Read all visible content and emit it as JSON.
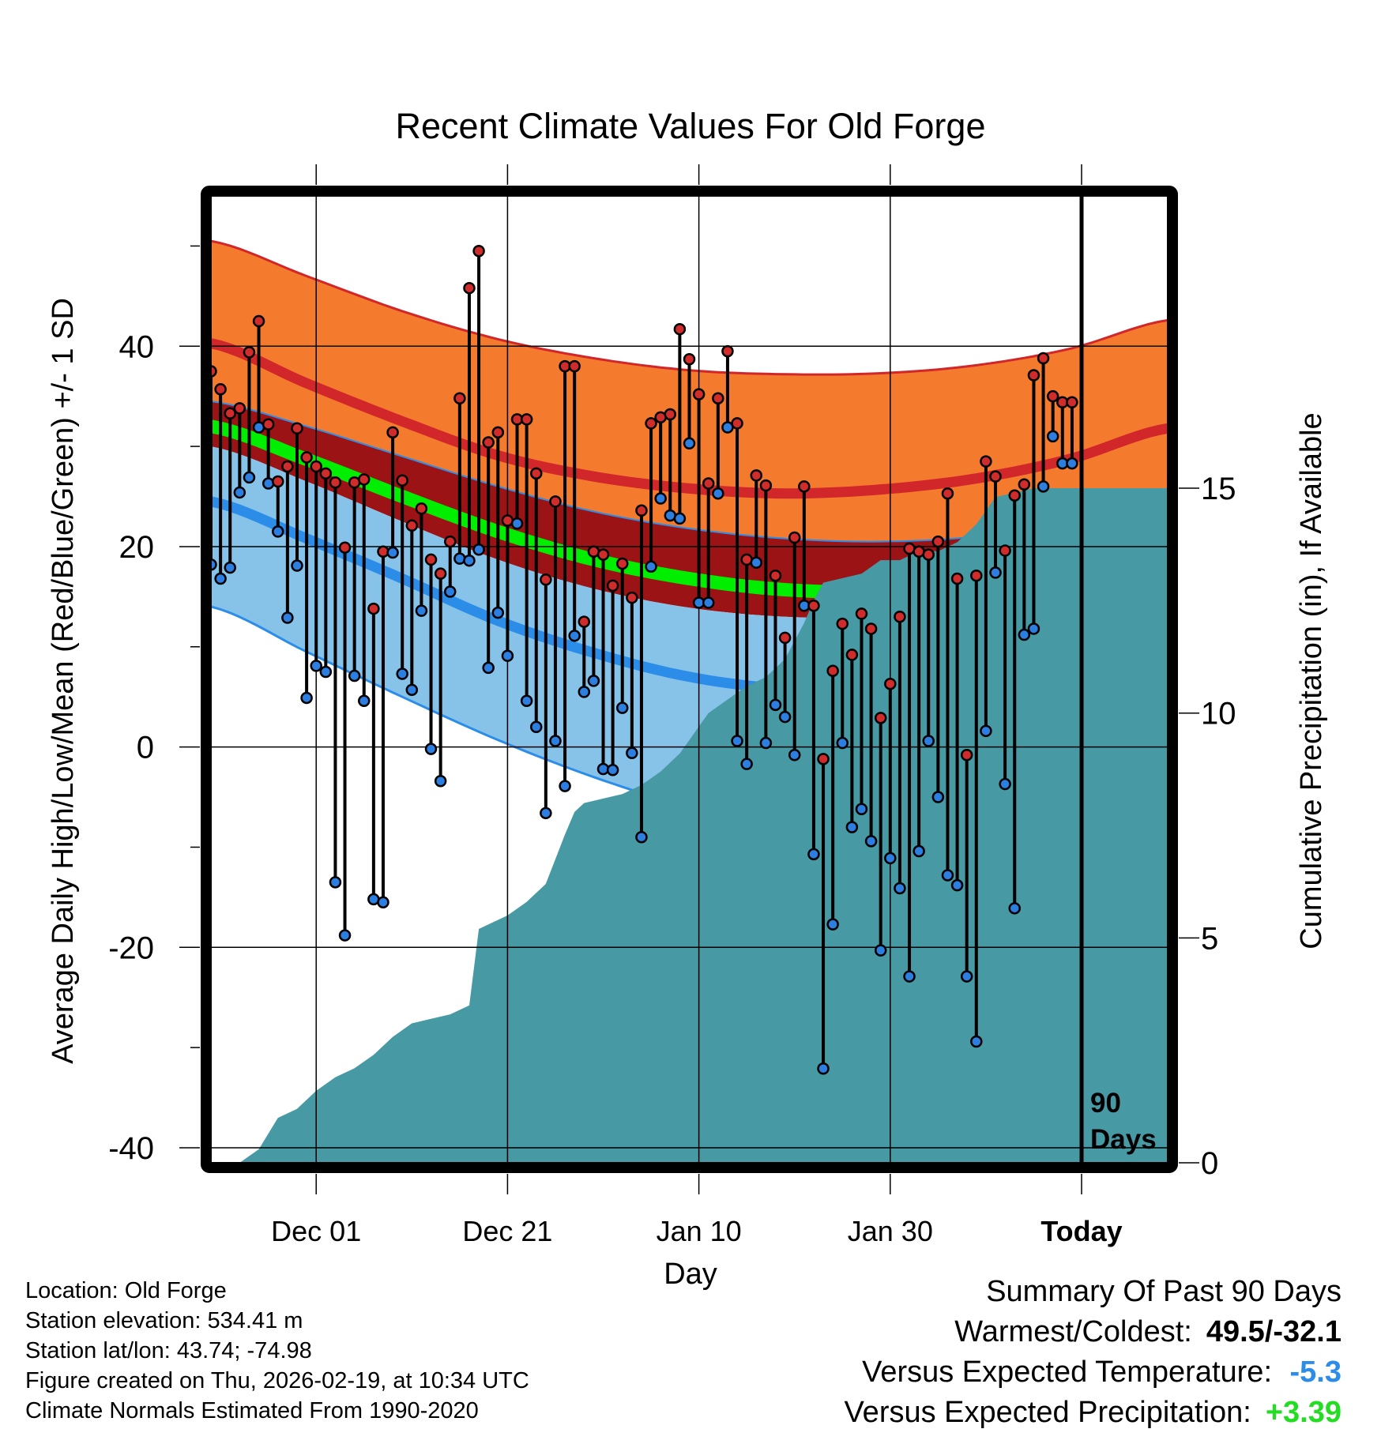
{
  "chart_data": {
    "type": "line",
    "title": "Recent Climate Values For Old Forge",
    "xlabel": "Day",
    "ylabel": "Average Daily High/Low/Mean (Red/Blue/Green) +/- 1 SD",
    "y2label": "Cumulative Precipitation (in), If Available",
    "ylim": [
      -41.5,
      55
    ],
    "y2lim": [
      0,
      21.5
    ],
    "xlim": [
      0,
      100
    ],
    "yticks": [
      -40,
      -20,
      0,
      20,
      40
    ],
    "ytick_labels": [
      "-40",
      "-20",
      "0",
      "20",
      "40"
    ],
    "y2ticks": [
      0,
      5,
      10,
      15
    ],
    "y2tick_labels": [
      "0",
      "5",
      "10",
      "15"
    ],
    "xticks": [
      11,
      31,
      51,
      71,
      91
    ],
    "xtick_labels": [
      "Dec 01",
      "Dec 21",
      "Jan 10",
      "Jan 30",
      "Today"
    ],
    "today_day": 91,
    "today_marker_label": "90 Days",
    "normals": {
      "days": [
        0,
        10,
        20,
        30,
        40,
        50,
        60,
        70,
        80,
        90,
        100
      ],
      "high_plus_sd": [
        50.5,
        47.0,
        43.5,
        40.7,
        38.8,
        37.6,
        37.2,
        37.3,
        38.1,
        39.8,
        42.6
      ],
      "high_mean": [
        40.3,
        36.3,
        32.5,
        29.1,
        27.0,
        25.8,
        25.3,
        25.7,
        26.8,
        28.8,
        31.8
      ],
      "mean_upper": [
        34.5,
        32.0,
        29.0,
        26.0,
        23.5,
        21.8,
        20.8,
        20.5,
        21.0,
        22.5,
        25.0
      ],
      "mean": [
        32.0,
        28.7,
        25.0,
        21.5,
        18.7,
        16.8,
        15.7,
        15.5,
        16.3,
        18.0,
        21.0
      ],
      "high_minus_sd": [
        30.0,
        26.5,
        22.5,
        18.7,
        15.8,
        13.9,
        13.0,
        13.0,
        14.0,
        16.0,
        19.5
      ],
      "low_mean": [
        24.5,
        20.8,
        16.8,
        12.6,
        9.4,
        7.0,
        5.8,
        5.8,
        6.8,
        8.8,
        11.5
      ],
      "low_minus_sd": [
        14.0,
        9.5,
        5.0,
        0.7,
        -3.0,
        -6.0,
        -8.0,
        -8.8,
        -7.5,
        -5.2,
        -2.5
      ]
    },
    "series": [
      {
        "name": "Daily High",
        "x": [
          0,
          1,
          2,
          3,
          4,
          5,
          6,
          7,
          8,
          9,
          10,
          11,
          12,
          13,
          14,
          15,
          16,
          17,
          18,
          19,
          20,
          21,
          22,
          23,
          24,
          25,
          26,
          27,
          28,
          29,
          30,
          31,
          32,
          33,
          34,
          35,
          36,
          37,
          38,
          39,
          40,
          41,
          42,
          43,
          44,
          45,
          46,
          47,
          48,
          49,
          50,
          51,
          52,
          53,
          54,
          55,
          56,
          57,
          58,
          59,
          60,
          61,
          62,
          63,
          64,
          65,
          66,
          67,
          68,
          69,
          70,
          71,
          72,
          73,
          74,
          75,
          76,
          77,
          78,
          79,
          80,
          81,
          82,
          83,
          84,
          85,
          86,
          87,
          88,
          89,
          90
        ],
        "values": [
          37.5,
          35.7,
          33.3,
          33.8,
          39.4,
          42.5,
          32.2,
          26.5,
          28.0,
          31.8,
          28.9,
          28.0,
          27.3,
          26.4,
          19.9,
          26.4,
          26.7,
          13.8,
          19.5,
          31.4,
          26.6,
          22.1,
          23.8,
          18.7,
          17.3,
          20.5,
          34.8,
          45.8,
          49.5,
          30.4,
          31.4,
          22.6,
          32.7,
          32.7,
          27.3,
          16.7,
          24.5,
          38.0,
          38.0,
          12.5,
          19.5,
          19.2,
          16.1,
          18.3,
          14.9,
          23.6,
          32.3,
          32.9,
          33.2,
          41.7,
          38.7,
          35.2,
          26.3,
          34.8,
          39.5,
          32.3,
          18.7,
          27.1,
          26.1,
          17.1,
          10.9,
          20.9,
          26.0,
          14.1,
          -1.2,
          7.6,
          12.3,
          9.2,
          13.3,
          11.8,
          2.9,
          6.3,
          13.0,
          19.8,
          19.5,
          19.2,
          20.5,
          25.3,
          16.8,
          -0.8,
          17.1,
          28.5,
          27.0,
          19.6,
          25.1,
          26.2,
          37.1,
          38.8,
          35.0,
          34.4,
          34.4
        ]
      },
      {
        "name": "Daily Low",
        "x": [
          0,
          1,
          2,
          3,
          4,
          5,
          6,
          7,
          8,
          9,
          10,
          11,
          12,
          13,
          14,
          15,
          16,
          17,
          18,
          19,
          20,
          21,
          22,
          23,
          24,
          25,
          26,
          27,
          28,
          29,
          30,
          31,
          32,
          33,
          34,
          35,
          36,
          37,
          38,
          39,
          40,
          41,
          42,
          43,
          44,
          45,
          46,
          47,
          48,
          49,
          50,
          51,
          52,
          53,
          54,
          55,
          56,
          57,
          58,
          59,
          60,
          61,
          62,
          63,
          64,
          65,
          66,
          67,
          68,
          69,
          70,
          71,
          72,
          73,
          74,
          75,
          76,
          77,
          78,
          79,
          80,
          81,
          82,
          83,
          84,
          85,
          86,
          87,
          88,
          89,
          90
        ],
        "values": [
          18.2,
          16.8,
          17.9,
          25.4,
          26.9,
          31.9,
          26.3,
          21.5,
          12.9,
          18.1,
          4.9,
          8.1,
          7.5,
          -13.5,
          -18.8,
          7.1,
          4.6,
          -15.2,
          -15.5,
          19.4,
          7.3,
          5.7,
          13.6,
          -0.2,
          -3.4,
          15.5,
          18.8,
          18.6,
          19.7,
          7.9,
          13.4,
          9.1,
          22.3,
          4.6,
          2.0,
          -6.6,
          0.6,
          -3.9,
          11.1,
          5.5,
          6.6,
          -2.2,
          -2.3,
          3.9,
          -0.6,
          -9.0,
          18.0,
          24.8,
          23.1,
          22.8,
          30.3,
          14.4,
          14.4,
          25.3,
          31.9,
          0.6,
          -1.7,
          18.4,
          0.4,
          4.2,
          3.0,
          -0.8,
          14.1,
          -10.7,
          -32.1,
          -17.7,
          0.4,
          -8.0,
          -6.2,
          -9.4,
          -20.3,
          -11.1,
          -14.1,
          -22.9,
          -10.4,
          0.6,
          -5.0,
          -12.8,
          -13.8,
          -22.9,
          -29.4,
          1.6,
          17.4,
          -3.7,
          -16.1,
          11.2,
          11.8,
          26.0,
          31.0,
          28.3,
          28.3
        ]
      },
      {
        "name": "Cumulative Precipitation",
        "x": [
          0,
          3,
          5,
          7,
          9,
          11,
          13,
          15,
          17,
          19,
          21,
          23,
          25,
          27,
          28,
          29,
          31,
          33,
          35,
          37,
          38,
          39,
          41,
          43,
          45,
          47,
          49,
          50,
          52,
          54,
          56,
          58,
          60,
          62,
          63,
          64,
          66,
          68,
          70,
          72,
          74,
          76,
          78,
          80,
          82,
          84,
          86,
          90,
          100
        ],
        "values": [
          0,
          0,
          0.3,
          1.0,
          1.2,
          1.6,
          1.9,
          2.1,
          2.4,
          2.8,
          3.1,
          3.2,
          3.3,
          3.5,
          5.2,
          5.3,
          5.5,
          5.8,
          6.2,
          7.3,
          7.8,
          8.0,
          8.1,
          8.2,
          8.4,
          8.7,
          9.1,
          9.4,
          10.0,
          10.3,
          10.6,
          10.8,
          11.2,
          12.0,
          12.5,
          12.9,
          13.0,
          13.1,
          13.4,
          13.4,
          13.6,
          13.6,
          13.8,
          14.2,
          14.8,
          14.9,
          15.0,
          15.0,
          15.0
        ]
      }
    ]
  },
  "info": {
    "location": "Location: Old Forge",
    "elevation": "Station elevation: 534.41 m",
    "latlon": "Station lat/lon: 43.74; -74.98",
    "created": "Figure created on Thu, 2026-02-19, at 10:34 UTC",
    "normals": "Climate Normals Estimated From 1990-2020"
  },
  "summary": {
    "title": "Summary Of Past 90 Days",
    "warm_cold_label": "Warmest/Coldest:",
    "warm_cold_value": "49.5/-32.1",
    "temp_label": "Versus Expected Temperature:",
    "temp_value": "-5.3",
    "precip_label": "Versus Expected Precipitation:",
    "precip_value": "+3.39"
  },
  "colors": {
    "high_band": "#f47a2e",
    "high_line": "#d1262a",
    "mean_band": "#9b1314",
    "mean_line": "#00ee00",
    "low_band": "#87c2e9",
    "low_line": "#2c8de9",
    "precip": "#4799a3",
    "high_dot": "#d12c2c",
    "low_dot": "#2c7fe0",
    "temp_value": "#2c8de9",
    "precip_value": "#22dd22"
  }
}
